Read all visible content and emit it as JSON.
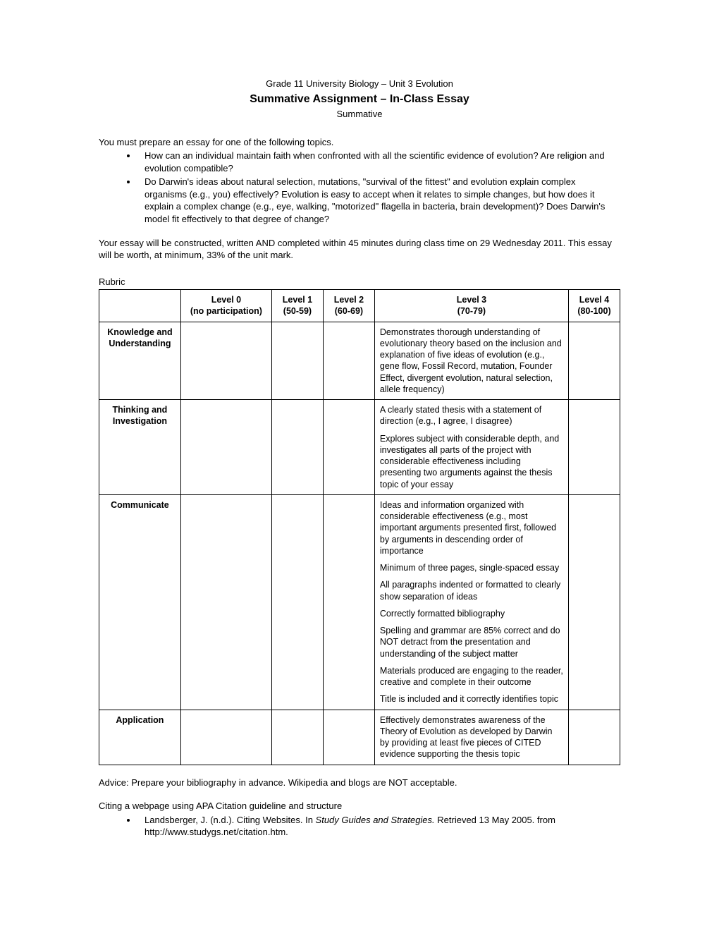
{
  "header": {
    "subtitle": "Grade 11 University Biology – Unit 3 Evolution",
    "title": "Summative Assignment – In-Class Essay",
    "type": "Summative"
  },
  "intro": "You must prepare an essay for one of the following topics.",
  "topics": [
    "How can an individual maintain faith when confronted with all the scientific evidence of evolution?  Are religion and evolution compatible?",
    "Do Darwin's ideas about natural selection, mutations, \"survival of the fittest\" and evolution explain complex organisms (e.g., you) effectively?  Evolution is easy to accept when it relates to simple changes, but how does it explain a complex change (e.g., eye, walking, \"motorized\" flagella in bacteria, brain development)?  Does Darwin's model fit effectively to that degree of change?"
  ],
  "timing": "Your essay will be constructed, written AND completed within 45 minutes during class time on 29 Wednesday 2011.   This essay will be worth, at minimum, 33% of the unit mark.",
  "rubric_label": "Rubric",
  "rubric": {
    "columns": [
      {
        "label": "Level 0",
        "sub": "(no participation)"
      },
      {
        "label": "Level 1",
        "sub": "(50-59)"
      },
      {
        "label": "Level 2",
        "sub": "(60-69)"
      },
      {
        "label": "Level 3",
        "sub": "(70-79)"
      },
      {
        "label": "Level 4",
        "sub": "(80-100)"
      }
    ],
    "rows": [
      {
        "label": "Knowledge and Understanding",
        "level3": [
          "Demonstrates thorough understanding of evolutionary theory based on the inclusion and explanation of five ideas of evolution (e.g.,  gene flow, Fossil Record, mutation, Founder Effect, divergent evolution, natural selection, allele frequency)"
        ]
      },
      {
        "label": "Thinking and Investigation",
        "level3": [
          "A clearly stated thesis with a statement of direction (e.g., I agree, I disagree)",
          "Explores subject with considerable depth, and investigates all parts of the project with considerable effectiveness including presenting two arguments against the thesis topic of your essay"
        ]
      },
      {
        "label": "Communicate",
        "level3": [
          "Ideas and information organized with considerable effectiveness (e.g., most important arguments presented first, followed by arguments in descending order of importance",
          "Minimum of three pages, single-spaced essay",
          "All paragraphs indented or formatted to clearly show separation of ideas",
          "Correctly formatted bibliography",
          "Spelling and grammar are 85% correct and do NOT detract from the presentation and understanding of the subject matter",
          "Materials produced are engaging to the reader, creative and complete in their outcome",
          "Title is included and it correctly identifies topic"
        ]
      },
      {
        "label": "Application",
        "level3": [
          "Effectively demonstrates awareness of the Theory of Evolution as developed by Darwin by providing at least five pieces of CITED evidence supporting the thesis topic"
        ]
      }
    ]
  },
  "advice": "Advice:  Prepare your bibliography in advance.  Wikipedia and blogs are NOT acceptable.",
  "citing_label": "Citing a webpage using APA Citation guideline and structure",
  "citing_example": {
    "prefix": "Landsberger, J. (n.d.). Citing Websites. In ",
    "italic": "Study Guides and Strategies.",
    "suffix": " Retrieved 13 May 2005. from http://www.studygs.net/citation.htm."
  }
}
